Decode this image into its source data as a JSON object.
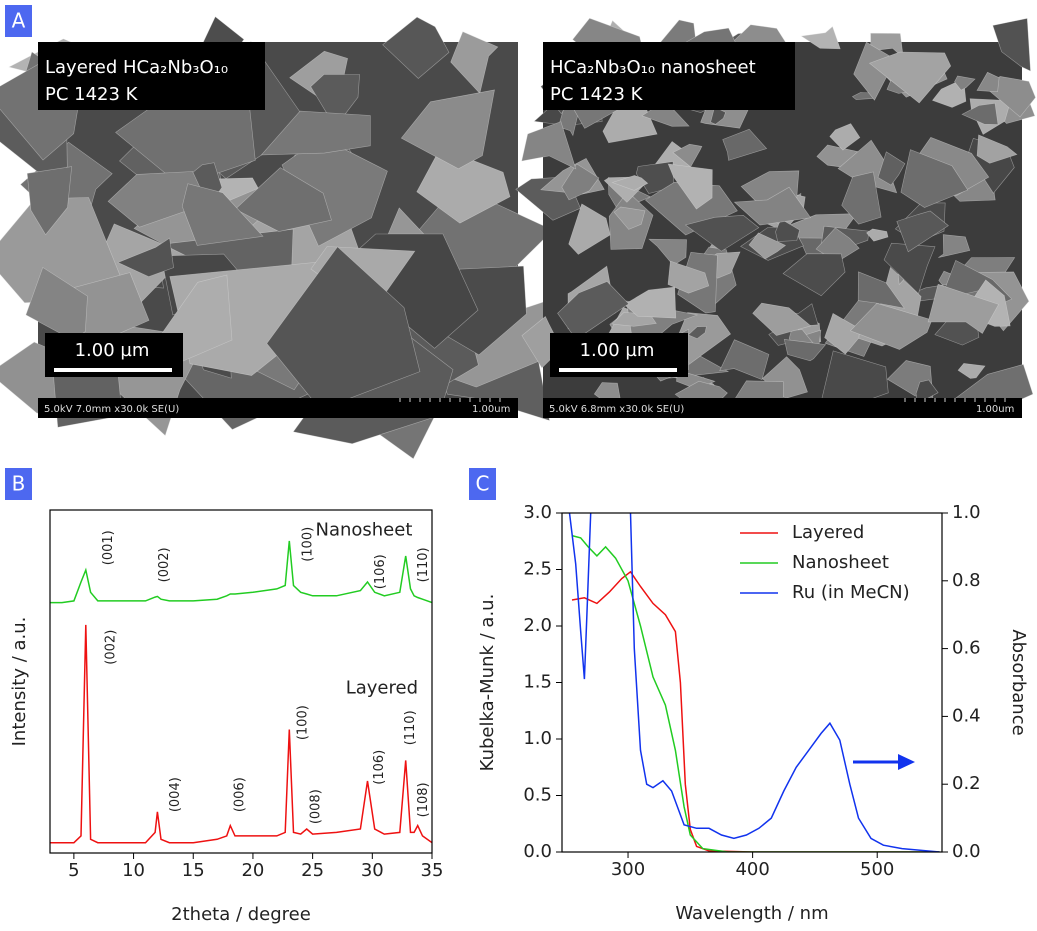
{
  "panel_labels": [
    "A",
    "B",
    "C"
  ],
  "sem_images": [
    {
      "caption": [
        "Layered HCa₂Nb₃O₁₀",
        "PC 1423 K"
      ],
      "scale_bar": "1.00 µm",
      "info": "5.0kV 7.0mm x30.0k SE(U)",
      "info_scale": "1.00um"
    },
    {
      "caption": [
        "HCa₂Nb₃O₁₀ nanosheet",
        "PC 1423 K"
      ],
      "scale_bar": "1.00 µm",
      "info": "5.0kV 6.8mm x30.0k SE(U)",
      "info_scale": "1.00um"
    }
  ],
  "chart_data": [
    {
      "type": "line",
      "xlabel": "2theta / degree",
      "ylabel": "Intensity / a.u.",
      "xlim": [
        3,
        35
      ],
      "xticks": [
        5,
        10,
        15,
        20,
        25,
        30,
        35
      ],
      "ylim": [
        0,
        100
      ],
      "series": [
        {
          "name": "Nanosheet",
          "color": "#22cc22",
          "label_at": {
            "x": 29.3,
            "y": 94
          },
          "x": [
            3,
            4,
            5,
            5.6,
            6,
            6.4,
            7,
            9,
            11,
            11.8,
            12,
            12.3,
            13,
            15,
            17,
            17.8,
            18.1,
            18.5,
            20,
            22,
            22.7,
            23.05,
            23.4,
            24,
            24.5,
            25,
            27,
            29,
            29.6,
            30.2,
            31,
            32.3,
            32.8,
            33.2,
            33.5,
            33.8,
            34.2,
            35
          ],
          "values": [
            73,
            73,
            73.5,
            79,
            82.5,
            76,
            73.5,
            73.5,
            73.5,
            74.6,
            74.8,
            74,
            73.5,
            73.5,
            74,
            75,
            75.5,
            75.5,
            76,
            77,
            78,
            91,
            78,
            76,
            75.5,
            75,
            75,
            76.5,
            79,
            76,
            75,
            76,
            86.6,
            77,
            75,
            74.5,
            74,
            73
          ],
          "peak_labels": [
            {
              "label": "(001)",
              "x": 7.9,
              "y": 89
            },
            {
              "label": "(002)",
              "x": 12.6,
              "y": 84
            },
            {
              "label": "(100)",
              "x": 24.6,
              "y": 90
            },
            {
              "label": "(106)",
              "x": 30.7,
              "y": 82
            },
            {
              "label": "(110)",
              "x": 34.3,
              "y": 84
            }
          ]
        },
        {
          "name": "Layered",
          "color": "#ee1111",
          "label_at": {
            "x": 30.8,
            "y": 48
          },
          "x": [
            3,
            4,
            5,
            5.6,
            6,
            6.4,
            7,
            9,
            11,
            11.8,
            12,
            12.3,
            13,
            15,
            17,
            17.8,
            18.1,
            18.5,
            20,
            22,
            22.7,
            23.05,
            23.4,
            24,
            24.5,
            25,
            27,
            29,
            29.6,
            30.2,
            31,
            32.3,
            32.8,
            33.2,
            33.5,
            33.8,
            34.2,
            35
          ],
          "values": [
            3,
            3,
            3,
            5,
            66.5,
            4,
            3,
            3,
            3,
            6,
            12,
            4,
            3,
            3,
            4,
            5,
            8,
            5,
            5,
            5,
            6,
            36,
            6,
            5.5,
            7,
            5.5,
            6,
            7,
            21,
            7,
            5.5,
            6,
            27,
            6,
            6,
            8,
            5,
            3
          ],
          "peak_labels": [
            {
              "label": "(002)",
              "x": 8.1,
              "y": 60
            },
            {
              "label": "(004)",
              "x": 13.5,
              "y": 17
            },
            {
              "label": "(006)",
              "x": 18.9,
              "y": 17
            },
            {
              "label": "(100)",
              "x": 24.2,
              "y": 38
            },
            {
              "label": "(008)",
              "x": 25.3,
              "y": 13.5
            },
            {
              "label": "(106)",
              "x": 30.6,
              "y": 25
            },
            {
              "label": "(110)",
              "x": 33.2,
              "y": 36.5
            },
            {
              "label": "(108)",
              "x": 34.3,
              "y": 15.5
            }
          ]
        }
      ]
    },
    {
      "type": "line",
      "xlabel": "Wavelength / nm",
      "ylabel": "Kubelka-Munk / a.u.",
      "y2label": "Absorbance",
      "xlim": [
        247,
        552
      ],
      "xticks": [
        300,
        400,
        500
      ],
      "ylim": [
        0,
        3
      ],
      "yticks": [
        {
          "value": 0,
          "label": "0.0"
        },
        0.5,
        {
          "value": 1,
          "label": "1.0"
        },
        1.5,
        {
          "value": 2,
          "label": "2.0"
        },
        2.5,
        {
          "value": 3,
          "label": "3.0"
        }
      ],
      "y2lim": [
        0,
        1
      ],
      "y2ticks": [
        {
          "value": 0,
          "label": "0.0"
        },
        0.2,
        0.4,
        0.6,
        0.8,
        {
          "value": 1,
          "label": "1.0"
        }
      ],
      "legend": "upper right",
      "series": [
        {
          "name": "Layered",
          "color": "#ee1111",
          "x": [
            255,
            265,
            275,
            285,
            295,
            302,
            310,
            320,
            330,
            338,
            342,
            346,
            350,
            355,
            365,
            400,
            550
          ],
          "values": [
            2.23,
            2.25,
            2.2,
            2.3,
            2.42,
            2.48,
            2.35,
            2.2,
            2.1,
            1.95,
            1.5,
            0.6,
            0.2,
            0.05,
            0.01,
            0,
            0
          ]
        },
        {
          "name": "Nanosheet",
          "color": "#22cc22",
          "x": [
            255,
            262,
            268,
            275,
            282,
            290,
            300,
            310,
            320,
            330,
            338,
            345,
            350,
            360,
            380,
            550
          ],
          "values": [
            2.8,
            2.78,
            2.7,
            2.62,
            2.7,
            2.6,
            2.4,
            2.0,
            1.55,
            1.3,
            0.9,
            0.4,
            0.15,
            0.03,
            0,
            0
          ]
        },
        {
          "name": "Ru (in MeCN)",
          "color": "#1133ee",
          "axis": "y2",
          "x": [
            253,
            258,
            262,
            265,
            267,
            270,
            285,
            302,
            305,
            310,
            315,
            320,
            328,
            335,
            345,
            355,
            365,
            375,
            385,
            395,
            405,
            415,
            425,
            435,
            445,
            455,
            462,
            470,
            478,
            485,
            495,
            505,
            520,
            550
          ],
          "values": [
            1.0,
            0.85,
            0.65,
            0.51,
            0.7,
            1.0,
            null,
            1.0,
            0.6,
            0.3,
            0.2,
            0.19,
            0.21,
            0.18,
            0.08,
            0.07,
            0.07,
            0.05,
            0.04,
            0.05,
            0.07,
            0.1,
            0.18,
            0.25,
            0.3,
            0.35,
            0.38,
            0.33,
            0.2,
            0.1,
            0.04,
            0.02,
            0.01,
            0
          ]
        }
      ]
    }
  ]
}
